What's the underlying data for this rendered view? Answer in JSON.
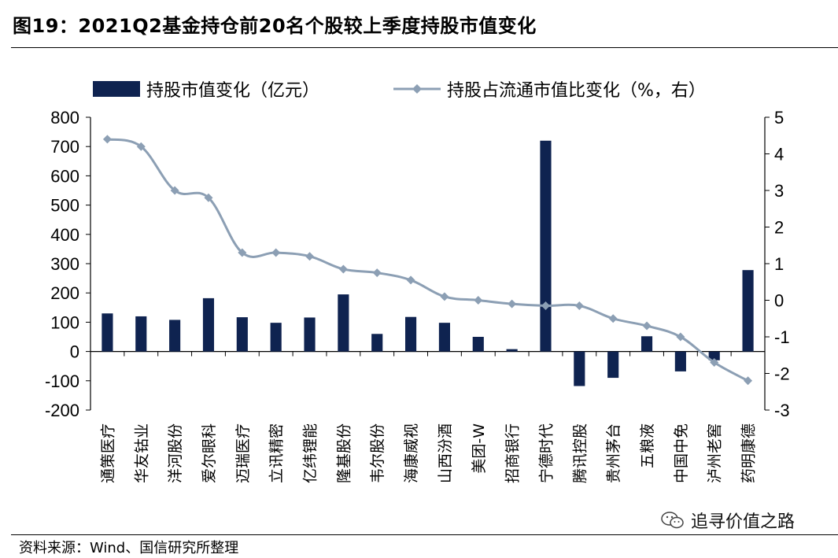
{
  "header": {
    "title": "图19：2021Q2基金持仓前20名个股较上季度持股市值变化"
  },
  "footer": {
    "source": "资料来源：Wind、国信研究所整理"
  },
  "watermark": {
    "text": "追寻价值之路",
    "icon": "wechat-icon"
  },
  "colors": {
    "bar": "#0f2350",
    "line": "#8c9fb4"
  },
  "chart_data": {
    "type": "bar",
    "categories": [
      "通策医疗",
      "华友钴业",
      "洋河股份",
      "爱尔眼科",
      "迈瑞医疗",
      "立讯精密",
      "亿纬锂能",
      "隆基股份",
      "韦尔股份",
      "海康威视",
      "山西汾酒",
      "美团-W",
      "招商银行",
      "宁德时代",
      "腾讯控股",
      "贵州茅台",
      "五粮液",
      "中国中免",
      "泸州老窖",
      "药明康德"
    ],
    "series": [
      {
        "name": "持股市值变化（亿元）",
        "type": "bar",
        "axis": "left",
        "values": [
          130,
          120,
          108,
          182,
          117,
          98,
          116,
          195,
          60,
          118,
          98,
          50,
          8,
          720,
          -118,
          -90,
          52,
          -68,
          -30,
          278
        ]
      },
      {
        "name": "持股占流通市值比变化（%，右）",
        "type": "line",
        "axis": "right",
        "values": [
          4.4,
          4.2,
          3.0,
          2.8,
          1.3,
          1.3,
          1.2,
          0.85,
          0.75,
          0.55,
          0.1,
          0.0,
          -0.1,
          -0.15,
          -0.15,
          -0.5,
          -0.7,
          -1.0,
          -1.7,
          -2.2
        ]
      }
    ],
    "y_left": {
      "min": -200,
      "max": 800,
      "ticks": [
        "800",
        "700",
        "600",
        "500",
        "400",
        "300",
        "200",
        "100",
        "0",
        "-100",
        "-200"
      ]
    },
    "y_right": {
      "min": -3,
      "max": 5,
      "ticks": [
        "5",
        "4",
        "3",
        "2",
        "1",
        "0",
        "-1",
        "-2",
        "-3"
      ]
    },
    "legend": "top",
    "grid": false
  }
}
